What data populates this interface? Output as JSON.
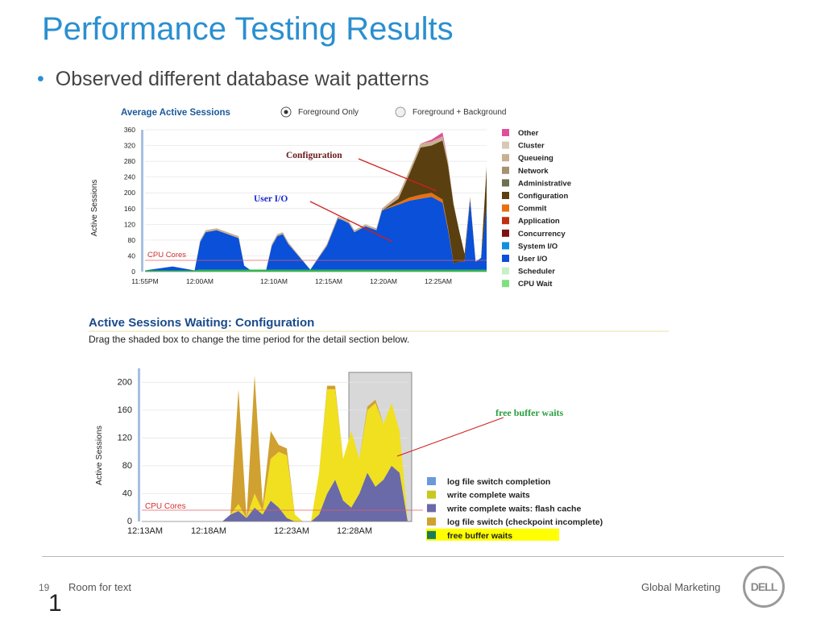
{
  "slide": {
    "title": "Performance Testing Results",
    "bullet": "Observed different database wait patterns",
    "page_number": "19",
    "room_text": "Room for text",
    "slide_digit": "1",
    "footer_right": "Global Marketing",
    "logo_text": "DELL",
    "title_color": "#2a8fd0"
  },
  "chart1": {
    "title": "Average Active Sessions",
    "radio_options": [
      "Foreground Only",
      "Foreground + Background"
    ],
    "selected_option": "Foreground Only",
    "ylabel": "Active Sessions",
    "annotation_configuration": "Configuration",
    "annotation_user_io": "User I/O",
    "cpu_cores_label": "CPU Cores"
  },
  "chart2": {
    "title": "Active Sessions Waiting: Configuration",
    "instruction": "Drag the shaded box to change the time period for the detail section below.",
    "ylabel": "Active Sessions",
    "annotation": "free buffer waits",
    "cpu_cores_label": "CPU Cores"
  },
  "chart_data": [
    {
      "type": "area",
      "title": "Average Active Sessions",
      "ylabel": "Active Sessions",
      "ylim": [
        0,
        360
      ],
      "y_ticks": [
        0,
        40,
        80,
        120,
        160,
        200,
        240,
        280,
        320,
        360
      ],
      "x_ticks": [
        "11:55PM",
        "12:00AM",
        "12:10AM",
        "12:15AM",
        "12:20AM",
        "12:25AM"
      ],
      "cpu_cores": 32,
      "legend_position": "right",
      "legend": [
        {
          "name": "Other",
          "color": "#e0509a"
        },
        {
          "name": "Cluster",
          "color": "#d8c8b8"
        },
        {
          "name": "Queueing",
          "color": "#c8b090"
        },
        {
          "name": "Network",
          "color": "#a89070"
        },
        {
          "name": "Administrative",
          "color": "#707050"
        },
        {
          "name": "Configuration",
          "color": "#5a3f10"
        },
        {
          "name": "Commit",
          "color": "#e87010"
        },
        {
          "name": "Application",
          "color": "#c03010"
        },
        {
          "name": "Concurrency",
          "color": "#801010"
        },
        {
          "name": "System I/O",
          "color": "#1090e0"
        },
        {
          "name": "User I/O",
          "color": "#0a50d8"
        },
        {
          "name": "Scheduler",
          "color": "#c8f0c8"
        },
        {
          "name": "CPU Wait",
          "color": "#80e080"
        },
        {
          "name": "CPU",
          "color": "#20c040"
        }
      ],
      "x": [
        0,
        5,
        9,
        10,
        11,
        13,
        15,
        17,
        18,
        19,
        20,
        22,
        23,
        24,
        25,
        26,
        30,
        33,
        35,
        36,
        37,
        38,
        40,
        42,
        43,
        46,
        48,
        50,
        52,
        54,
        55,
        56,
        57,
        58,
        59,
        60,
        61,
        62
      ],
      "series": [
        {
          "name": "CPU",
          "values": [
            3,
            3,
            3,
            5,
            5,
            5,
            5,
            5,
            5,
            5,
            5,
            5,
            5,
            5,
            5,
            5,
            5,
            5,
            5,
            5,
            5,
            5,
            5,
            5,
            5,
            5,
            5,
            5,
            5,
            5,
            5,
            5,
            5,
            5,
            5,
            5,
            5,
            5
          ]
        },
        {
          "name": "User I/O",
          "values": [
            0,
            10,
            0,
            70,
            95,
            100,
            90,
            80,
            10,
            0,
            0,
            0,
            60,
            85,
            90,
            65,
            0,
            60,
            130,
            125,
            118,
            95,
            110,
            100,
            150,
            165,
            175,
            180,
            185,
            170,
            100,
            15,
            20,
            20,
            180,
            20,
            30,
            160
          ]
        },
        {
          "name": "Commit",
          "values": [
            0,
            0,
            0,
            0,
            0,
            0,
            0,
            0,
            0,
            0,
            0,
            0,
            0,
            0,
            0,
            0,
            0,
            0,
            0,
            0,
            0,
            0,
            0,
            0,
            0,
            5,
            8,
            10,
            10,
            8,
            5,
            0,
            0,
            0,
            5,
            0,
            0,
            0
          ]
        },
        {
          "name": "Configuration",
          "values": [
            0,
            0,
            0,
            0,
            0,
            0,
            0,
            0,
            0,
            0,
            0,
            0,
            0,
            0,
            0,
            0,
            0,
            0,
            0,
            0,
            0,
            0,
            0,
            0,
            0,
            10,
            60,
            120,
            120,
            150,
            160,
            150,
            80,
            20,
            0,
            0,
            0,
            100
          ]
        },
        {
          "name": "Queueing",
          "values": [
            0,
            0,
            0,
            5,
            5,
            5,
            5,
            5,
            0,
            0,
            0,
            0,
            5,
            5,
            5,
            5,
            0,
            5,
            5,
            5,
            5,
            5,
            5,
            5,
            5,
            10,
            10,
            10,
            10,
            10,
            10,
            5,
            0,
            0,
            0,
            0,
            0,
            5
          ]
        },
        {
          "name": "Other",
          "values": [
            0,
            0,
            0,
            0,
            0,
            0,
            0,
            0,
            0,
            0,
            0,
            0,
            0,
            0,
            0,
            0,
            0,
            0,
            0,
            0,
            0,
            0,
            0,
            0,
            0,
            0,
            0,
            0,
            5,
            10,
            0,
            0,
            0,
            0,
            0,
            0,
            0,
            0
          ]
        }
      ]
    },
    {
      "type": "area",
      "title": "Active Sessions Waiting: Configuration",
      "ylabel": "Active Sessions",
      "ylim": [
        0,
        220
      ],
      "y_ticks": [
        0,
        40,
        80,
        120,
        160,
        200
      ],
      "x_ticks": [
        "12:13AM",
        "12:18AM",
        "12:23AM",
        "12:28AM"
      ],
      "cpu_cores": 16,
      "legend_position": "bottom-right",
      "legend": [
        {
          "name": "log file switch completion",
          "color": "#6a9ad8"
        },
        {
          "name": "write complete waits",
          "color": "#c8c820"
        },
        {
          "name": "write complete waits: flash cache",
          "color": "#6a6aa8"
        },
        {
          "name": "log file switch (checkpoint incomplete)",
          "color": "#d0a030"
        },
        {
          "name": "free buffer waits",
          "color": "#f0e020",
          "highlighted": true
        }
      ],
      "x": [
        0,
        5,
        10,
        11,
        12,
        13,
        14,
        15,
        16,
        17,
        18,
        19,
        20,
        21,
        22,
        23,
        24,
        25,
        26,
        27,
        28,
        29,
        30,
        31,
        32,
        33
      ],
      "series": [
        {
          "name": "write complete waits: flash cache",
          "values": [
            0,
            0,
            0,
            10,
            15,
            5,
            20,
            10,
            30,
            20,
            5,
            0,
            0,
            0,
            10,
            40,
            60,
            30,
            20,
            40,
            70,
            50,
            60,
            80,
            70,
            0
          ]
        },
        {
          "name": "free buffer waits",
          "values": [
            0,
            0,
            0,
            0,
            10,
            0,
            20,
            5,
            60,
            80,
            90,
            10,
            0,
            0,
            60,
            150,
            130,
            60,
            110,
            50,
            90,
            120,
            80,
            90,
            60,
            0
          ]
        },
        {
          "name": "log file switch (checkpoint incomplete)",
          "values": [
            0,
            0,
            0,
            0,
            165,
            0,
            170,
            10,
            40,
            10,
            10,
            0,
            0,
            0,
            0,
            5,
            5,
            0,
            0,
            0,
            5,
            5,
            0,
            0,
            0,
            0
          ]
        }
      ],
      "selection_range": [
        24,
        33
      ]
    }
  ]
}
